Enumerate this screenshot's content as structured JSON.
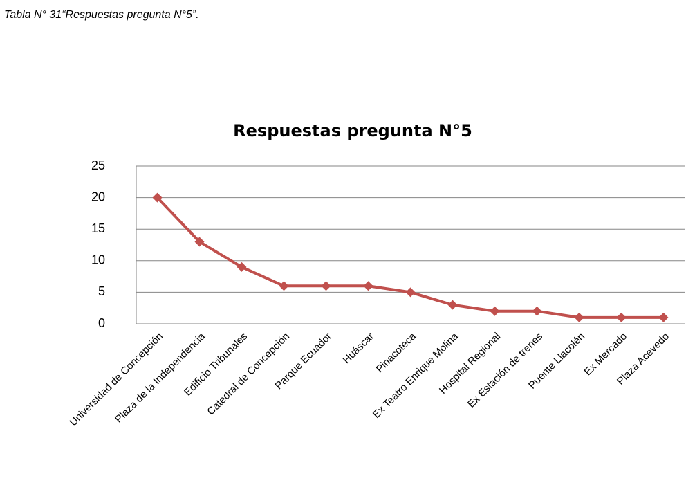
{
  "caption": "Tabla N° 31“Respuestas pregunta N°5”.",
  "chart_data": {
    "type": "line",
    "title": "Respuestas pregunta N°5",
    "categories": [
      "Universidad de Concepción",
      "Plaza de la Independencia",
      "Edificio Tribunales",
      "Catedral de Concepción",
      "Parque Ecuador",
      "Huáscar",
      "Pinacoteca",
      "Ex Teatro Enrique Molina",
      "Hospital Regional",
      "Ex Estación de trenes",
      "Puente Llacolén",
      "Ex Mercado",
      "Plaza Acevedo"
    ],
    "values": [
      20,
      13,
      9,
      6,
      6,
      6,
      5,
      3,
      2,
      2,
      1,
      1,
      1
    ],
    "color": "#c0504d",
    "ylim": [
      0,
      25
    ],
    "yticks": [
      0,
      5,
      10,
      15,
      20,
      25
    ],
    "grid": true
  }
}
